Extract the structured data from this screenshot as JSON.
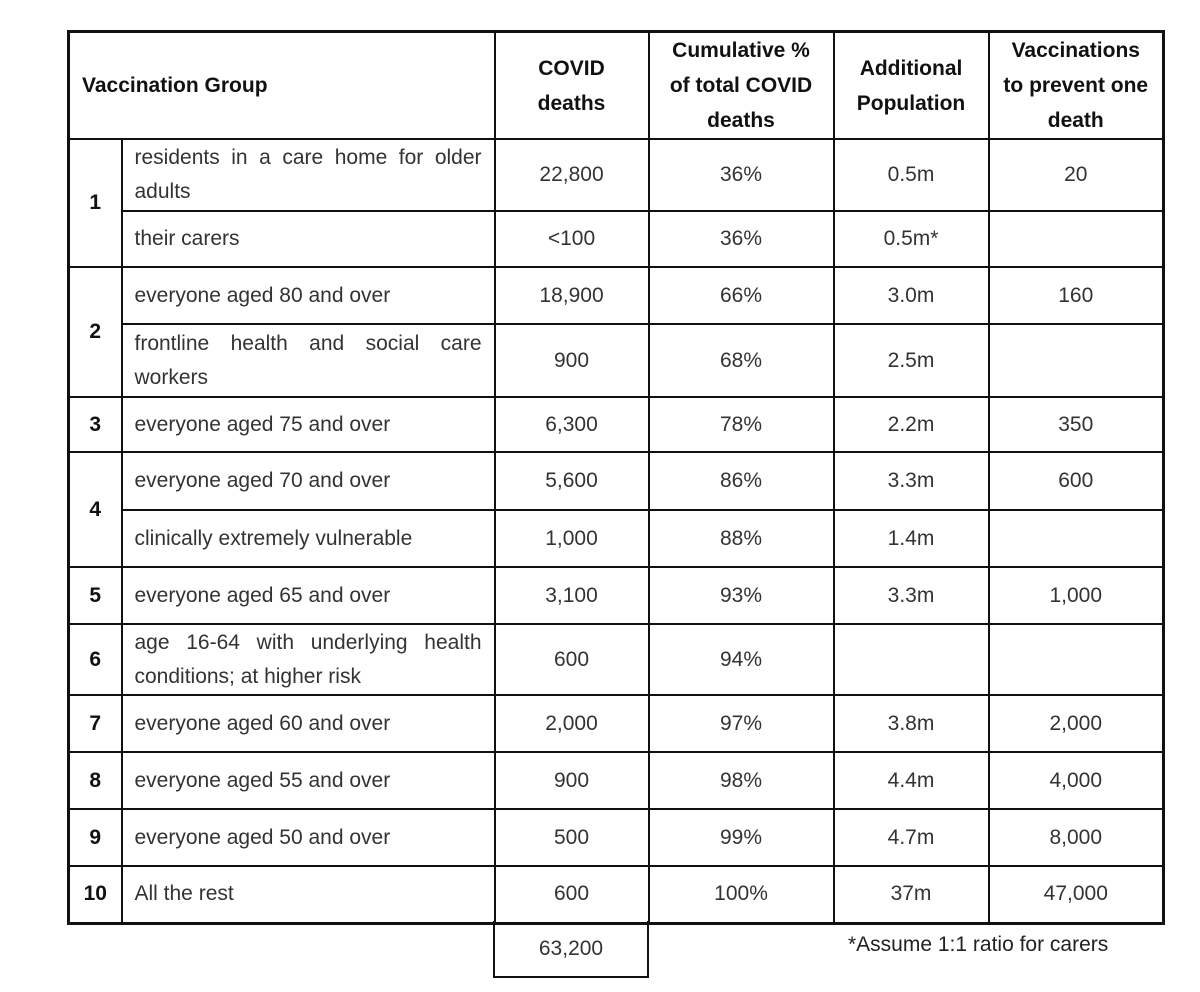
{
  "table": {
    "headers": {
      "group": "Vaccination Group",
      "deaths": "COVID deaths",
      "cumulative": "Cumulative % of total COVID deaths",
      "population": "Additional Population",
      "vaccinations": "Vaccinations to prevent one death"
    },
    "rows": [
      {
        "group": "1",
        "desc": "residents in a care home for older adults",
        "deaths": "22,800",
        "cum": "36%",
        "pop": "0.5m",
        "vacc": "20"
      },
      {
        "group": "1",
        "desc": "their carers",
        "deaths": "<100",
        "cum": "36%",
        "pop": "0.5m*",
        "vacc": ""
      },
      {
        "group": "2",
        "desc": "everyone aged 80 and over",
        "deaths": "18,900",
        "cum": "66%",
        "pop": "3.0m",
        "vacc": "160"
      },
      {
        "group": "2",
        "desc": "frontline health and social care workers",
        "deaths": "900",
        "cum": "68%",
        "pop": "2.5m",
        "vacc": ""
      },
      {
        "group": "3",
        "desc": "everyone aged 75 and over",
        "deaths": "6,300",
        "cum": "78%",
        "pop": "2.2m",
        "vacc": "350"
      },
      {
        "group": "4",
        "desc": "everyone aged 70 and over",
        "deaths": "5,600",
        "cum": "86%",
        "pop": "3.3m",
        "vacc": "600"
      },
      {
        "group": "4",
        "desc": "clinically extremely vulnerable",
        "deaths": "1,000",
        "cum": "88%",
        "pop": "1.4m",
        "vacc": ""
      },
      {
        "group": "5",
        "desc": "everyone aged 65 and over",
        "deaths": "3,100",
        "cum": "93%",
        "pop": "3.3m",
        "vacc": "1,000"
      },
      {
        "group": "6",
        "desc": "age 16-64 with underlying health conditions; at higher risk",
        "deaths": "600",
        "cum": "94%",
        "pop": "",
        "vacc": ""
      },
      {
        "group": "7",
        "desc": "everyone aged 60 and over",
        "deaths": "2,000",
        "cum": "97%",
        "pop": "3.8m",
        "vacc": "2,000"
      },
      {
        "group": "8",
        "desc": "everyone aged 55 and over",
        "deaths": "900",
        "cum": "98%",
        "pop": "4.4m",
        "vacc": "4,000"
      },
      {
        "group": "9",
        "desc": "everyone aged 50 and over",
        "deaths": "500",
        "cum": "99%",
        "pop": "4.7m",
        "vacc": "8,000"
      },
      {
        "group": "10",
        "desc": "All the rest",
        "deaths": "600",
        "cum": "100%",
        "pop": "37m",
        "vacc": "47,000"
      }
    ],
    "total_deaths": "63,200",
    "footnote": "*Assume 1:1 ratio for carers"
  }
}
